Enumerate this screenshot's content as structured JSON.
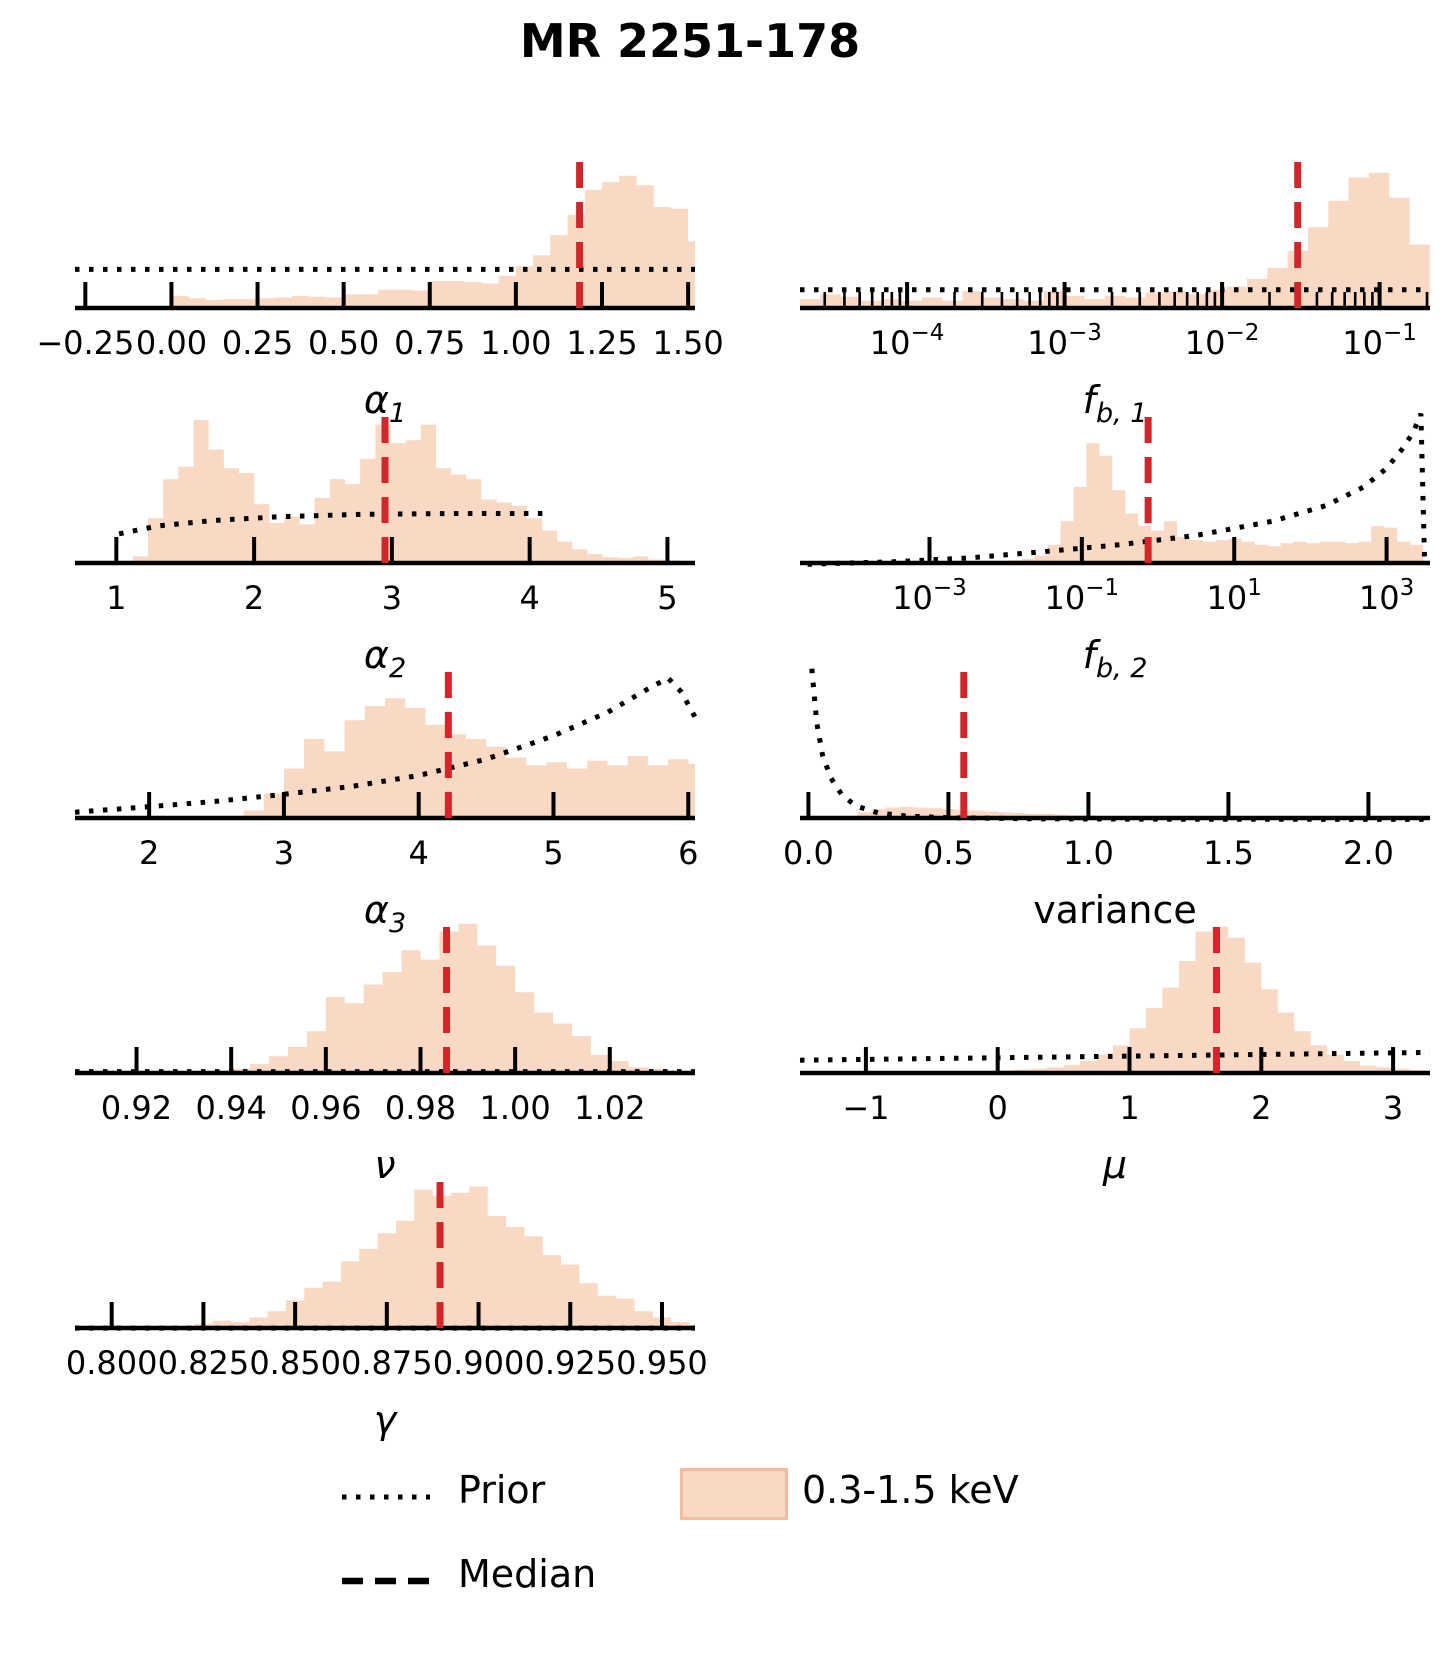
{
  "title": "MR 2251-178",
  "legend": {
    "prior_label": "Prior",
    "median_label": "Median",
    "series_label": "0.3-1.5 keV"
  },
  "colors": {
    "hist_fill": "#f9d8c4",
    "hist_edge": "#f2bd9e",
    "median_line": "#d2262b",
    "prior_line": "#000000",
    "axis": "#000000"
  },
  "chart_data": {
    "type": "bar",
    "subtype": "histogram-grid",
    "title": "MR 2251-178",
    "legend_entries": [
      "Prior",
      "Median",
      "0.3-1.5 keV"
    ],
    "panels": [
      {
        "id": "alpha1",
        "col": "L",
        "row": 0,
        "xlabel": {
          "main": "α",
          "sub": "1",
          "italic": true
        },
        "axis": {
          "scale": "linear",
          "min": -0.28,
          "max": 1.52,
          "minor": "none",
          "major_ticks": [
            {
              "v": -0.25,
              "label": "−0.25"
            },
            {
              "v": 0.0,
              "label": "0.00"
            },
            {
              "v": 0.25,
              "label": "0.25"
            },
            {
              "v": 0.5,
              "label": "0.50"
            },
            {
              "v": 0.75,
              "label": "0.75"
            },
            {
              "v": 1.0,
              "label": "1.00"
            },
            {
              "v": 1.25,
              "label": "1.25"
            },
            {
              "v": 1.5,
              "label": "1.50"
            }
          ]
        },
        "hist": {
          "start": 0.0,
          "bin_width": 0.05,
          "heights": [
            0.09,
            0.075,
            0.065,
            0.07,
            0.07,
            0.075,
            0.08,
            0.09,
            0.085,
            0.08,
            0.1,
            0.1,
            0.13,
            0.13,
            0.125,
            0.185,
            0.185,
            0.18,
            0.17,
            0.22,
            0.28,
            0.35,
            0.48,
            0.61,
            0.77,
            0.82,
            0.86,
            0.8,
            0.66,
            0.65,
            0.44
          ]
        },
        "prior": [
          [
            -0.28,
            0.26
          ],
          [
            1.52,
            0.26
          ]
        ],
        "median": 1.185
      },
      {
        "id": "fb1",
        "col": "R",
        "row": 0,
        "xlabel": {
          "main": "f",
          "sub": "b, 1",
          "italic": true
        },
        "axis": {
          "scale": "log10",
          "min": -4.68,
          "max": -0.68,
          "minor": "log",
          "major_ticks": [
            {
              "v": -4,
              "label": "10",
              "sup": "−4"
            },
            {
              "v": -3,
              "label": "10",
              "sup": "−3"
            },
            {
              "v": -2,
              "label": "10",
              "sup": "−2"
            },
            {
              "v": -1,
              "label": "10",
              "sup": "−1"
            }
          ]
        },
        "hist": {
          "start": -4.68,
          "bin_width": 0.129,
          "heights": [
            0.07,
            0.1,
            0.085,
            0.06,
            0.07,
            0.06,
            0.08,
            0.06,
            0.12,
            0.08,
            0.07,
            0.06,
            0.12,
            0.09,
            0.07,
            0.09,
            0.08,
            0.11,
            0.12,
            0.1,
            0.13,
            0.15,
            0.2,
            0.27,
            0.38,
            0.53,
            0.7,
            0.85,
            0.88,
            0.72,
            0.42
          ]
        },
        "prior": [
          [
            -4.68,
            0.13
          ],
          [
            -0.68,
            0.13
          ]
        ],
        "median": -1.52
      },
      {
        "id": "alpha2",
        "col": "L",
        "row": 1,
        "xlabel": {
          "main": "α",
          "sub": "2",
          "italic": true
        },
        "axis": {
          "scale": "linear",
          "min": 0.7,
          "max": 5.2,
          "minor": "none",
          "major_ticks": [
            {
              "v": 1,
              "label": "1"
            },
            {
              "v": 2,
              "label": "2"
            },
            {
              "v": 3,
              "label": "3"
            },
            {
              "v": 4,
              "label": "4"
            },
            {
              "v": 5,
              "label": "5"
            }
          ]
        },
        "hist": {
          "start": 1.12,
          "bin_width": 0.11,
          "heights": [
            0.055,
            0.3,
            0.55,
            0.63,
            0.93,
            0.74,
            0.62,
            0.59,
            0.39,
            0.27,
            0.31,
            0.26,
            0.43,
            0.55,
            0.52,
            0.68,
            0.9,
            0.78,
            0.8,
            0.9,
            0.62,
            0.58,
            0.55,
            0.42,
            0.4,
            0.38,
            0.3,
            0.22,
            0.15,
            0.1,
            0.07,
            0.05,
            0.045,
            0.055,
            0.035,
            0.03
          ]
        },
        "prior": [
          [
            1.02,
            0.2
          ],
          [
            1.3,
            0.25
          ],
          [
            1.7,
            0.285
          ],
          [
            2.2,
            0.31
          ],
          [
            2.8,
            0.325
          ],
          [
            3.5,
            0.33
          ],
          [
            4.15,
            0.33
          ]
        ],
        "median": 2.95
      },
      {
        "id": "fb2",
        "col": "R",
        "row": 1,
        "xlabel": {
          "main": "f",
          "sub": "b, 2",
          "italic": true
        },
        "axis": {
          "scale": "log10",
          "min": -4.7,
          "max": 3.57,
          "minor": "none",
          "major_ticks": [
            {
              "v": -3,
              "label": "10",
              "sup": "−3"
            },
            {
              "v": -1,
              "label": "10",
              "sup": "−1"
            },
            {
              "v": 1,
              "label": "10",
              "sup": "1"
            },
            {
              "v": 3,
              "label": "10",
              "sup": "3"
            }
          ]
        },
        "hist": {
          "start": -2.47,
          "bin_width": 0.17,
          "heights": [
            0.015,
            0.02,
            0.02,
            0.03,
            0.04,
            0.06,
            0.13,
            0.28,
            0.5,
            0.78,
            0.7,
            0.48,
            0.33,
            0.25,
            0.22,
            0.28,
            0.18,
            0.16,
            0.15,
            0.16,
            0.17,
            0.15,
            0.13,
            0.12,
            0.14,
            0.15,
            0.14,
            0.15,
            0.15,
            0.14,
            0.15,
            0.25,
            0.24,
            0.15,
            0.13
          ]
        },
        "prior": [
          [
            -4.6,
            0.005
          ],
          [
            -3.5,
            0.02
          ],
          [
            -2.5,
            0.045
          ],
          [
            -1.5,
            0.085
          ],
          [
            -0.5,
            0.13
          ],
          [
            0.5,
            0.19
          ],
          [
            1.5,
            0.28
          ],
          [
            2.2,
            0.38
          ],
          [
            2.7,
            0.5
          ],
          [
            3.0,
            0.62
          ],
          [
            3.2,
            0.74
          ],
          [
            3.35,
            0.85
          ],
          [
            3.45,
            0.97
          ],
          [
            3.5,
            0.0
          ]
        ],
        "median": -0.13
      },
      {
        "id": "alpha3",
        "col": "L",
        "row": 2,
        "xlabel": {
          "main": "α",
          "sub": "3",
          "italic": true
        },
        "axis": {
          "scale": "linear",
          "min": 1.45,
          "max": 6.05,
          "minor": "none",
          "major_ticks": [
            {
              "v": 2,
              "label": "2"
            },
            {
              "v": 3,
              "label": "3"
            },
            {
              "v": 4,
              "label": "4"
            },
            {
              "v": 5,
              "label": "5"
            },
            {
              "v": 6,
              "label": "6"
            }
          ]
        },
        "hist": {
          "start": 2.55,
          "bin_width": 0.15,
          "heights": [
            0.01,
            0.06,
            0.17,
            0.33,
            0.52,
            0.44,
            0.64,
            0.73,
            0.78,
            0.72,
            0.61,
            0.55,
            0.52,
            0.47,
            0.4,
            0.35,
            0.37,
            0.33,
            0.38,
            0.35,
            0.41,
            0.35,
            0.39,
            0.36
          ]
        },
        "prior": [
          [
            1.45,
            0.05
          ],
          [
            2.0,
            0.085
          ],
          [
            2.5,
            0.12
          ],
          [
            3.0,
            0.165
          ],
          [
            3.5,
            0.215
          ],
          [
            4.0,
            0.285
          ],
          [
            4.5,
            0.39
          ],
          [
            5.0,
            0.54
          ],
          [
            5.4,
            0.69
          ],
          [
            5.7,
            0.84
          ],
          [
            5.85,
            0.91
          ],
          [
            5.95,
            0.82
          ],
          [
            6.05,
            0.66
          ]
        ],
        "median": 4.22
      },
      {
        "id": "variance",
        "col": "R",
        "row": 2,
        "xlabel": {
          "main": "variance",
          "sub": "",
          "italic": false
        },
        "axis": {
          "scale": "linear",
          "min": -0.03,
          "max": 2.22,
          "minor": "none",
          "major_ticks": [
            {
              "v": 0.0,
              "label": "0.0"
            },
            {
              "v": 0.5,
              "label": "0.5"
            },
            {
              "v": 1.0,
              "label": "1.0"
            },
            {
              "v": 1.5,
              "label": "1.5"
            },
            {
              "v": 2.0,
              "label": "2.0"
            }
          ]
        },
        "hist": {
          "start": 0.125,
          "bin_width": 0.05,
          "heights": [
            0.02,
            0.05,
            0.07,
            0.08,
            0.085,
            0.08,
            0.075,
            0.07,
            0.065,
            0.06,
            0.055,
            0.05,
            0.045,
            0.04,
            0.04,
            0.035,
            0.03,
            0.03,
            0.025,
            0.025,
            0.02,
            0.02,
            0.018,
            0.015,
            0.015,
            0.012,
            0.012,
            0.01,
            0.01,
            0.01,
            0.008,
            0.008,
            0.008,
            0.01,
            0.008,
            0.006,
            0.008,
            0.006,
            0.006,
            0.008,
            0.006,
            0.005
          ]
        },
        "prior": [
          [
            0.012,
            0.97
          ],
          [
            0.03,
            0.62
          ],
          [
            0.05,
            0.42
          ],
          [
            0.08,
            0.27
          ],
          [
            0.12,
            0.16
          ],
          [
            0.17,
            0.09
          ],
          [
            0.25,
            0.045
          ],
          [
            0.35,
            0.025
          ],
          [
            0.5,
            0.015
          ],
          [
            0.8,
            0.008
          ],
          [
            1.3,
            0.005
          ],
          [
            2.22,
            0.004
          ]
        ],
        "median": 0.555
      },
      {
        "id": "nu",
        "col": "L",
        "row": 3,
        "xlabel": {
          "main": "ν",
          "sub": "",
          "italic": true
        },
        "axis": {
          "scale": "linear",
          "min": 0.907,
          "max": 1.038,
          "minor": "none",
          "major_ticks": [
            {
              "v": 0.92,
              "label": "0.92"
            },
            {
              "v": 0.94,
              "label": "0.94"
            },
            {
              "v": 0.96,
              "label": "0.96"
            },
            {
              "v": 0.98,
              "label": "0.98"
            },
            {
              "v": 1.0,
              "label": "1.00"
            },
            {
              "v": 1.02,
              "label": "1.02"
            }
          ]
        },
        "hist": {
          "start": 0.936,
          "bin_width": 0.004,
          "heights": [
            0.02,
            0.04,
            0.07,
            0.12,
            0.18,
            0.28,
            0.5,
            0.46,
            0.58,
            0.66,
            0.8,
            0.74,
            0.92,
            0.97,
            0.83,
            0.7,
            0.53,
            0.4,
            0.33,
            0.25,
            0.13,
            0.09,
            0.05,
            0.04
          ]
        },
        "prior": [
          [
            0.907,
            0.022
          ],
          [
            1.038,
            0.022
          ]
        ],
        "median": 0.9855
      },
      {
        "id": "mu",
        "col": "R",
        "row": 3,
        "xlabel": {
          "main": "μ",
          "sub": "",
          "italic": true
        },
        "axis": {
          "scale": "linear",
          "min": -1.5,
          "max": 3.28,
          "minor": "none",
          "major_ticks": [
            {
              "v": -1,
              "label": "−1"
            },
            {
              "v": 0,
              "label": "0"
            },
            {
              "v": 1,
              "label": "1"
            },
            {
              "v": 2,
              "label": "2"
            },
            {
              "v": 3,
              "label": "3"
            }
          ]
        },
        "hist": {
          "start": -0.75,
          "bin_width": 0.125,
          "heights": [
            0.025,
            0.0,
            0.0,
            0.0,
            0.0,
            0.02,
            0.03,
            0.035,
            0.04,
            0.05,
            0.065,
            0.09,
            0.13,
            0.19,
            0.3,
            0.43,
            0.56,
            0.73,
            0.92,
            0.95,
            0.88,
            0.72,
            0.55,
            0.4,
            0.28,
            0.19,
            0.13,
            0.09,
            0.06,
            0.05,
            0.04,
            0.03
          ]
        },
        "prior": [
          [
            -1.5,
            0.095
          ],
          [
            3.28,
            0.145
          ]
        ],
        "median": 1.66
      },
      {
        "id": "gamma",
        "col": "L",
        "row": 4,
        "xlabel": {
          "main": "γ",
          "sub": "",
          "italic": true
        },
        "axis": {
          "scale": "linear",
          "min": 0.79,
          "max": 0.959,
          "minor": "none",
          "major_ticks": [
            {
              "v": 0.8,
              "label": "0.800"
            },
            {
              "v": 0.825,
              "label": "0.825"
            },
            {
              "v": 0.85,
              "label": "0.850"
            },
            {
              "v": 0.875,
              "label": "0.875"
            },
            {
              "v": 0.9,
              "label": "0.900"
            },
            {
              "v": 0.925,
              "label": "0.925"
            },
            {
              "v": 0.95,
              "label": "0.950"
            }
          ]
        },
        "hist": {
          "start": 0.8175,
          "bin_width": 0.005,
          "heights": [
            0.015,
            0.04,
            0.06,
            0.05,
            0.08,
            0.12,
            0.19,
            0.27,
            0.31,
            0.44,
            0.52,
            0.62,
            0.7,
            0.9,
            0.86,
            0.88,
            0.92,
            0.73,
            0.66,
            0.6,
            0.48,
            0.42,
            0.3,
            0.22,
            0.2,
            0.12,
            0.08,
            0.05,
            0.03
          ]
        },
        "prior": [
          [
            0.79,
            0.012
          ],
          [
            0.959,
            0.012
          ]
        ],
        "median": 0.8895
      }
    ]
  }
}
